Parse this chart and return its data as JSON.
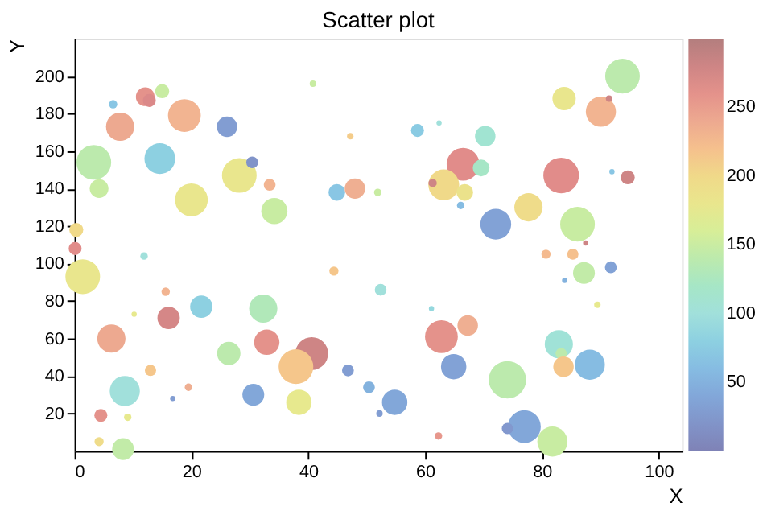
{
  "chart_data": {
    "type": "bubble",
    "title": "Scatter plot",
    "xlabel": "X",
    "ylabel": "Y",
    "xlim": [
      0,
      104
    ],
    "ylim": [
      0,
      220
    ],
    "xticks": [
      0,
      20,
      40,
      60,
      80,
      100
    ],
    "yticks": [
      20,
      40,
      60,
      80,
      100,
      120,
      140,
      160,
      180,
      200
    ],
    "clim": [
      0,
      300
    ],
    "cticks": [
      50,
      100,
      150,
      200,
      250
    ],
    "grid": false,
    "x": [
      12.1,
      12.8,
      15,
      6.6,
      7.8,
      18.8,
      26.1,
      3.3,
      4.2,
      14.6,
      20,
      28.2,
      30.4,
      33.4,
      34.2,
      40.8,
      47.2,
      44.9,
      48,
      51.9,
      0.3,
      0.1,
      11.9,
      93.8,
      83.8,
      90.1,
      91.5,
      58.7,
      62.4,
      70.3,
      66.5,
      69.6,
      63.2,
      61.3,
      66.8,
      66.1,
      83.3,
      92,
      94.7,
      77.7,
      72.1,
      86.1,
      87.5,
      1.4,
      44.4,
      52.4,
      15.6,
      10.2,
      21.7,
      32.3,
      16.1,
      6.3,
      32.9,
      26.4,
      40.6,
      37.9,
      46.8,
      13,
      8.6,
      30.6,
      19.5,
      16.8,
      50.4,
      38.4,
      4.5,
      9.1,
      4.2,
      8.3,
      52.2,
      54.8,
      80.7,
      85.3,
      87.2,
      91.8,
      83.9,
      89.5,
      61.1,
      67.3,
      62.8,
      64.9,
      82.9,
      83.3,
      83.7,
      88.2,
      74.1,
      77,
      74.1,
      81.8,
      62.3
    ],
    "values": [
      189,
      187,
      192,
      185,
      173,
      179,
      173,
      154,
      140,
      156,
      134,
      147,
      154,
      142,
      128,
      196,
      168,
      138,
      140,
      138,
      118,
      108,
      104,
      200,
      188,
      181,
      188,
      171,
      175,
      168,
      153,
      151,
      142,
      143,
      138,
      131,
      147,
      149,
      146,
      130,
      121,
      121,
      111,
      93,
      96,
      86,
      85,
      73,
      77,
      76,
      71,
      60,
      58,
      52,
      52,
      45,
      43,
      43,
      32,
      30,
      34,
      28,
      34,
      26,
      19,
      18,
      5,
      1,
      20,
      26,
      105,
      105,
      95,
      98,
      91,
      78,
      76,
      67,
      61,
      45,
      57,
      52,
      45,
      46,
      38,
      13,
      12,
      5,
      8
    ],
    "sizes": [
      0.25,
      0.12,
      0.14,
      0.05,
      0.57,
      0.77,
      0.3,
      0.86,
      0.25,
      0.68,
      0.77,
      0.86,
      0.1,
      0.1,
      0.49,
      0.03,
      0.03,
      0.2,
      0.3,
      0.04,
      0.14,
      0.12,
      0.04,
      0.86,
      0.39,
      0.65,
      0.03,
      0.12,
      0.02,
      0.3,
      0.77,
      0.2,
      0.68,
      0.05,
      0.2,
      0.04,
      0.91,
      0.02,
      0.14,
      0.57,
      0.68,
      0.86,
      0.02,
      0.86,
      0.06,
      0.1,
      0.05,
      0.02,
      0.36,
      0.57,
      0.36,
      0.57,
      0.46,
      0.39,
      0.77,
      0.86,
      0.1,
      0.09,
      0.65,
      0.34,
      0.04,
      0.02,
      0.1,
      0.46,
      0.12,
      0.04,
      0.06,
      0.34,
      0.03,
      0.46,
      0.06,
      0.09,
      0.34,
      0.1,
      0.02,
      0.03,
      0.02,
      0.3,
      0.77,
      0.46,
      0.57,
      0.09,
      0.3,
      0.65,
      1,
      0.77,
      0.09,
      0.65,
      0.04
    ],
    "cvalues": [
      260,
      270,
      150,
      70,
      240,
      230,
      30,
      140,
      150,
      80,
      180,
      180,
      20,
      230,
      150,
      150,
      210,
      70,
      235,
      150,
      200,
      265,
      100,
      140,
      180,
      230,
      280,
      75,
      100,
      110,
      265,
      120,
      200,
      280,
      185,
      60,
      265,
      70,
      280,
      195,
      35,
      150,
      280,
      180,
      215,
      100,
      230,
      175,
      80,
      130,
      275,
      240,
      260,
      140,
      280,
      215,
      30,
      215,
      100,
      40,
      235,
      30,
      50,
      175,
      260,
      175,
      195,
      145,
      30,
      40,
      225,
      220,
      145,
      35,
      50,
      175,
      90,
      235,
      260,
      35,
      105,
      140,
      215,
      60,
      140,
      40,
      25,
      150,
      255
    ]
  }
}
